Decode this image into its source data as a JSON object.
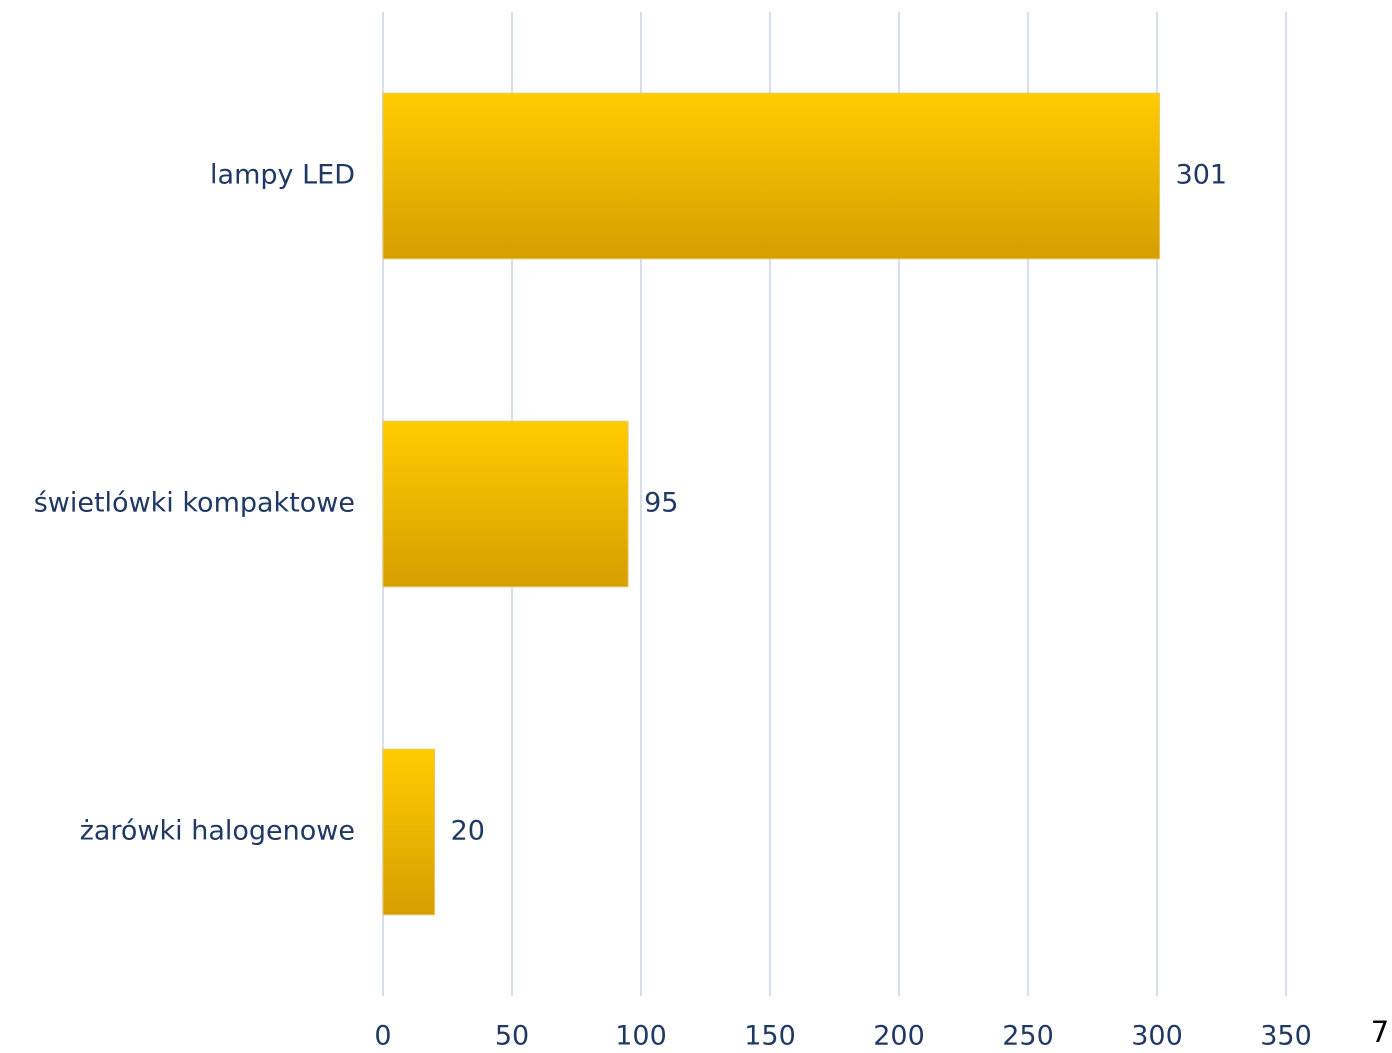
{
  "chart_data": {
    "type": "barh",
    "categories": [
      "lampy LED",
      "świetlówki kompaktowe",
      "żarówki halogenowe"
    ],
    "values": [
      301,
      95,
      20
    ],
    "color": "#ffcc00",
    "xlim": [
      0,
      350
    ],
    "xticks": [
      0,
      50,
      100,
      150,
      200,
      250,
      300,
      350
    ],
    "grid": true
  },
  "page_number": "7"
}
